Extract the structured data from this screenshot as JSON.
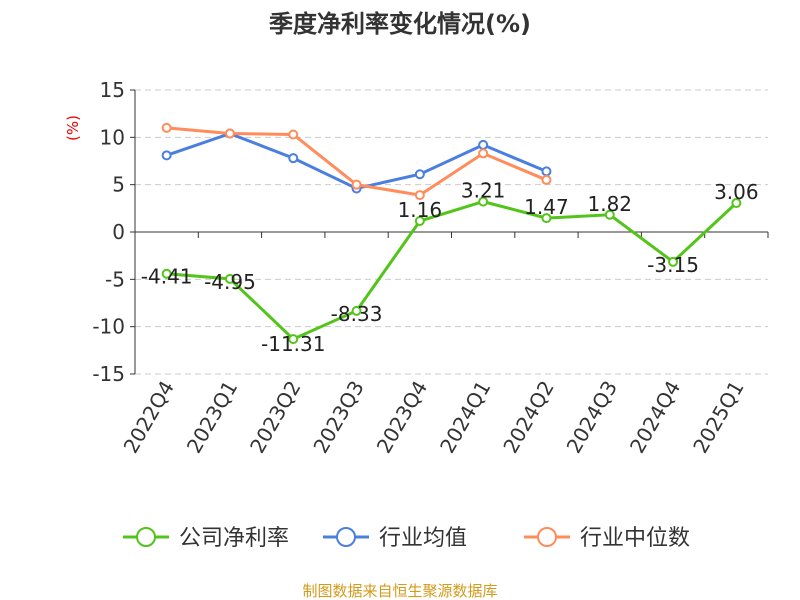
{
  "chart_data": {
    "type": "line",
    "title": "季度净利率变化情况(%)",
    "ylabel": "(%)",
    "xlabel": "",
    "ylim": [
      -15,
      15
    ],
    "yticks": [
      15,
      10,
      5,
      0,
      -5,
      -10,
      -15
    ],
    "categories": [
      "2022Q4",
      "2023Q1",
      "2023Q2",
      "2023Q3",
      "2023Q4",
      "2024Q1",
      "2024Q2",
      "2024Q3",
      "2024Q4",
      "2025Q1"
    ],
    "grid": true,
    "legend_placement": "bottom",
    "series": [
      {
        "name": "公司净利率",
        "color": "#52c41a",
        "values": [
          -4.41,
          -4.95,
          -11.31,
          -8.33,
          1.16,
          3.21,
          1.47,
          1.82,
          -3.15,
          3.06
        ],
        "labels": [
          "-4.41",
          "-4.95",
          "-11.31",
          "-8.33",
          "1.16",
          "3.21",
          "1.47",
          "1.82",
          "-3.15",
          "3.06"
        ]
      },
      {
        "name": "行业均值",
        "color": "#4a7fe0",
        "values": [
          8.1,
          10.4,
          7.8,
          4.6,
          6.1,
          9.2,
          6.4,
          null,
          null,
          null
        ]
      },
      {
        "name": "行业中位数",
        "color": "#ff8c5a",
        "values": [
          11.0,
          10.4,
          10.3,
          5.0,
          3.9,
          8.3,
          5.5,
          null,
          null,
          null
        ]
      }
    ]
  },
  "source": "制图数据来自恒生聚源数据库"
}
